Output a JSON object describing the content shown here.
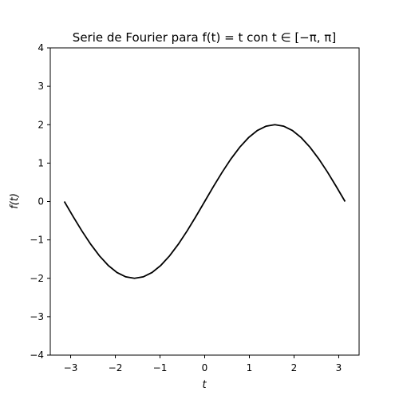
{
  "chart_data": {
    "type": "line",
    "title": "Serie de Fourier para f(t) = t con t ∈ [−π, π]",
    "xlabel": "t",
    "ylabel": "f(t)",
    "xlim": [
      -3.456,
      3.456
    ],
    "ylim": [
      -4,
      4
    ],
    "x_ticks": [
      -3,
      -2,
      -1,
      0,
      1,
      2,
      3
    ],
    "x_tick_labels": [
      "−3",
      "−2",
      "−1",
      "0",
      "1",
      "2",
      "3"
    ],
    "y_ticks": [
      -4,
      -3,
      -2,
      -1,
      0,
      1,
      2,
      3,
      4
    ],
    "y_tick_labels": [
      "−4",
      "−3",
      "−2",
      "−1",
      "0",
      "1",
      "2",
      "3",
      "4"
    ],
    "grid": false,
    "series": [
      {
        "color": "#000000",
        "x": [
          -3.1416,
          -2.9452,
          -2.7489,
          -2.5525,
          -2.3562,
          -2.1598,
          -1.9635,
          -1.7671,
          -1.5708,
          -1.3744,
          -1.1781,
          -0.9817,
          -0.7854,
          -0.589,
          -0.3927,
          -0.1963,
          0.0,
          0.1963,
          0.3927,
          0.589,
          0.7854,
          0.9817,
          1.1781,
          1.3744,
          1.5708,
          1.7671,
          1.9635,
          2.1598,
          2.3562,
          2.5525,
          2.7489,
          2.9452,
          3.1416
        ],
        "y": [
          0.0,
          -0.3902,
          -0.7654,
          -1.1111,
          -1.4142,
          -1.6629,
          -1.8478,
          -1.9616,
          -2.0,
          -1.9616,
          -1.8478,
          -1.6629,
          -1.4142,
          -1.1111,
          -0.7654,
          -0.3902,
          0.0,
          0.3902,
          0.7654,
          1.1111,
          1.4142,
          1.6629,
          1.8478,
          1.9616,
          2.0,
          1.9616,
          1.8478,
          1.6629,
          1.4142,
          1.1111,
          0.7654,
          0.3902,
          0.0
        ]
      }
    ]
  }
}
